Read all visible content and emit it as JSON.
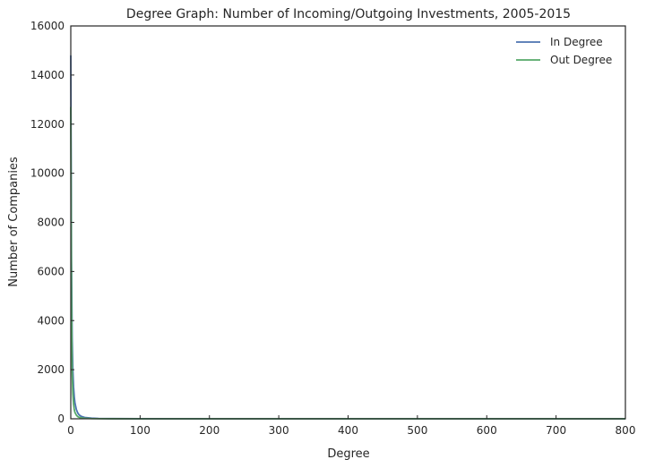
{
  "chart_data": {
    "type": "line",
    "title": "Degree Graph: Number of Incoming/Outgoing Investments, 2005-2015",
    "xlabel": "Degree",
    "ylabel": "Number of Companies",
    "xlim": [
      0,
      800
    ],
    "ylim": [
      0,
      16000
    ],
    "xticks": [
      0,
      100,
      200,
      300,
      400,
      500,
      600,
      700,
      800
    ],
    "yticks": [
      0,
      2000,
      4000,
      6000,
      8000,
      10000,
      12000,
      14000,
      16000
    ],
    "grid": false,
    "legend_position": "top-right",
    "series": [
      {
        "name": "In Degree",
        "color": "#4c72b0",
        "x": [
          0,
          1,
          2,
          3,
          4,
          5,
          6,
          8,
          10,
          12,
          15,
          20,
          30,
          40,
          60,
          100,
          200,
          400,
          800
        ],
        "y": [
          14800,
          6500,
          3300,
          2000,
          1300,
          900,
          650,
          380,
          240,
          160,
          100,
          55,
          25,
          14,
          7,
          3,
          1,
          0,
          0
        ]
      },
      {
        "name": "Out Degree",
        "color": "#55a868",
        "x": [
          0,
          1,
          2,
          3,
          4,
          5,
          6,
          8,
          10,
          12,
          15,
          20,
          30,
          40,
          60,
          100,
          200,
          400,
          800
        ],
        "y": [
          12700,
          5000,
          1900,
          1000,
          600,
          380,
          260,
          150,
          90,
          60,
          40,
          22,
          10,
          6,
          3,
          1,
          0,
          0,
          0
        ]
      }
    ]
  }
}
